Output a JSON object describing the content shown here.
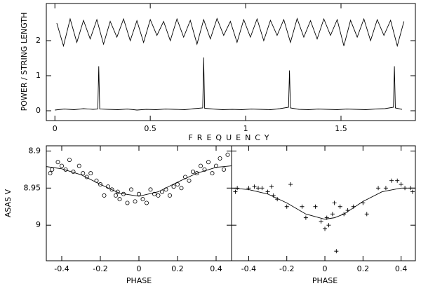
{
  "chart_data": [
    {
      "type": "line",
      "xlabel": "FREQUENCY",
      "ylabel": "POWER / STRING LENGTH",
      "xlim": [
        -0.045,
        1.89
      ],
      "ylim": [
        -0.28,
        3.06
      ],
      "xticks": [
        0,
        0.5,
        1,
        1.5
      ],
      "yticks": [
        0,
        1,
        2
      ],
      "series": [
        {
          "color": "#000000",
          "mark": "line",
          "x": [
            0.01,
            0.045,
            0.08,
            0.115,
            0.15,
            0.185,
            0.22,
            0.255,
            0.29,
            0.325,
            0.36,
            0.395,
            0.43,
            0.465,
            0.5,
            0.535,
            0.57,
            0.605,
            0.64,
            0.675,
            0.71,
            0.745,
            0.78,
            0.815,
            0.85,
            0.885,
            0.92,
            0.955,
            0.99,
            1.025,
            1.06,
            1.095,
            1.13,
            1.165,
            1.2,
            1.235,
            1.27,
            1.305,
            1.34,
            1.375,
            1.41,
            1.445,
            1.48,
            1.515,
            1.55,
            1.585,
            1.62,
            1.655,
            1.69,
            1.725,
            1.76,
            1.795,
            1.83
          ],
          "values": [
            2.5,
            1.85,
            2.62,
            1.95,
            2.58,
            2.05,
            2.6,
            1.9,
            2.55,
            2.1,
            2.62,
            2.0,
            2.57,
            1.95,
            2.6,
            2.15,
            2.55,
            2.0,
            2.62,
            2.1,
            2.58,
            1.9,
            2.6,
            2.05,
            2.63,
            2.15,
            2.55,
            1.95,
            2.6,
            2.1,
            2.62,
            2.0,
            2.58,
            2.15,
            2.6,
            1.95,
            2.63,
            2.1,
            2.57,
            2.05,
            2.62,
            2.15,
            2.6,
            1.85,
            2.58,
            2.1,
            2.62,
            2.0,
            2.6,
            2.15,
            2.58,
            1.85,
            2.55
          ]
        },
        {
          "color": "#000000",
          "mark": "line",
          "x": [
            0,
            0.05,
            0.1,
            0.15,
            0.2,
            0.225,
            0.23,
            0.235,
            0.28,
            0.33,
            0.38,
            0.43,
            0.48,
            0.53,
            0.58,
            0.63,
            0.68,
            0.73,
            0.775,
            0.78,
            0.785,
            0.83,
            0.88,
            0.93,
            0.98,
            1.03,
            1.08,
            1.13,
            1.18,
            1.225,
            1.23,
            1.235,
            1.28,
            1.33,
            1.38,
            1.43,
            1.48,
            1.53,
            1.58,
            1.63,
            1.68,
            1.73,
            1.775,
            1.78,
            1.785,
            1.82
          ],
          "values": [
            0.02,
            0.05,
            0.03,
            0.06,
            0.04,
            0.05,
            1.27,
            0.05,
            0.04,
            0.03,
            0.05,
            0.02,
            0.04,
            0.03,
            0.05,
            0.04,
            0.03,
            0.06,
            0.08,
            1.52,
            0.07,
            0.05,
            0.03,
            0.04,
            0.03,
            0.05,
            0.04,
            0.03,
            0.06,
            0.1,
            1.15,
            0.08,
            0.04,
            0.03,
            0.05,
            0.04,
            0.03,
            0.05,
            0.04,
            0.03,
            0.05,
            0.06,
            0.1,
            1.27,
            0.08,
            0.04
          ]
        }
      ]
    },
    {
      "type": "scatter",
      "xlabel": "PHASE",
      "ylabel": "ASAS V",
      "xlim": [
        -0.48,
        0.48
      ],
      "ylim": [
        9.048,
        8.893
      ],
      "xticks": [
        -0.4,
        -0.2,
        0,
        0.2,
        0.4
      ],
      "yticks": [
        8.9,
        8.95,
        9
      ],
      "ytick_labels": true,
      "series": [
        {
          "color": "#000000",
          "mark": "circle",
          "x": [
            -0.46,
            -0.45,
            -0.42,
            -0.4,
            -0.38,
            -0.36,
            -0.34,
            -0.31,
            -0.29,
            -0.27,
            -0.25,
            -0.22,
            -0.2,
            -0.18,
            -0.16,
            -0.14,
            -0.12,
            -0.11,
            -0.1,
            -0.08,
            -0.06,
            -0.04,
            -0.02,
            0,
            0.02,
            0.04,
            0.06,
            0.08,
            0.1,
            0.12,
            0.14,
            0.16,
            0.18,
            0.2,
            0.22,
            0.24,
            0.26,
            0.28,
            0.3,
            0.32,
            0.34,
            0.36,
            0.38,
            0.4,
            0.42,
            0.44,
            0.46
          ],
          "values": [
            8.93,
            8.925,
            8.915,
            8.92,
            8.925,
            8.912,
            8.928,
            8.92,
            8.93,
            8.935,
            8.93,
            8.94,
            8.945,
            8.96,
            8.948,
            8.952,
            8.96,
            8.955,
            8.965,
            8.958,
            8.97,
            8.952,
            8.968,
            8.958,
            8.965,
            8.97,
            8.952,
            8.958,
            8.96,
            8.955,
            8.952,
            8.96,
            8.948,
            8.945,
            8.95,
            8.935,
            8.94,
            8.928,
            8.93,
            8.92,
            8.925,
            8.915,
            8.93,
            8.92,
            8.91,
            8.925,
            8.905
          ]
        },
        {
          "color": "#000000",
          "mark": "line",
          "x": [
            -0.48,
            -0.4,
            -0.3,
            -0.2,
            -0.1,
            0,
            0.1,
            0.2,
            0.3,
            0.4,
            0.48
          ],
          "values": [
            8.921,
            8.924,
            8.932,
            8.945,
            8.957,
            8.961,
            8.955,
            8.942,
            8.93,
            8.922,
            8.92
          ]
        }
      ]
    },
    {
      "type": "scatter",
      "xlabel": "PHASE",
      "xlim": [
        -0.49,
        0.475
      ],
      "ylim": [
        9.048,
        8.893
      ],
      "xticks": [
        -0.4,
        -0.2,
        0,
        0.2,
        0.4
      ],
      "yticks": [
        8.9,
        8.95,
        9
      ],
      "ytick_labels": false,
      "series": [
        {
          "color": "#000000",
          "mark": "plus",
          "x": [
            -0.47,
            -0.46,
            -0.4,
            -0.37,
            -0.35,
            -0.33,
            -0.3,
            -0.28,
            -0.27,
            -0.25,
            -0.2,
            -0.18,
            -0.12,
            -0.1,
            -0.05,
            -0.02,
            0,
            0.01,
            0.02,
            0.04,
            0.05,
            0.06,
            0.08,
            0.1,
            0.12,
            0.15,
            0.2,
            0.22,
            0.28,
            0.32,
            0.35,
            0.38,
            0.4,
            0.42,
            0.45,
            0.46
          ],
          "values": [
            8.955,
            8.95,
            8.95,
            8.948,
            8.95,
            8.95,
            8.955,
            8.948,
            8.96,
            8.965,
            8.975,
            8.945,
            8.975,
            8.99,
            8.975,
            8.995,
            9.005,
            8.99,
            9.0,
            8.985,
            8.97,
            9.035,
            8.975,
            8.985,
            8.98,
            8.975,
            8.97,
            8.985,
            8.95,
            8.95,
            8.94,
            8.94,
            8.945,
            8.95,
            8.95,
            8.955
          ]
        },
        {
          "color": "#000000",
          "mark": "line",
          "x": [
            -0.49,
            -0.4,
            -0.3,
            -0.2,
            -0.1,
            0,
            0.05,
            0.1,
            0.2,
            0.3,
            0.4,
            0.475
          ],
          "values": [
            8.95,
            8.952,
            8.958,
            8.97,
            8.985,
            8.992,
            8.99,
            8.985,
            8.968,
            8.955,
            8.95,
            8.95
          ]
        }
      ]
    }
  ]
}
